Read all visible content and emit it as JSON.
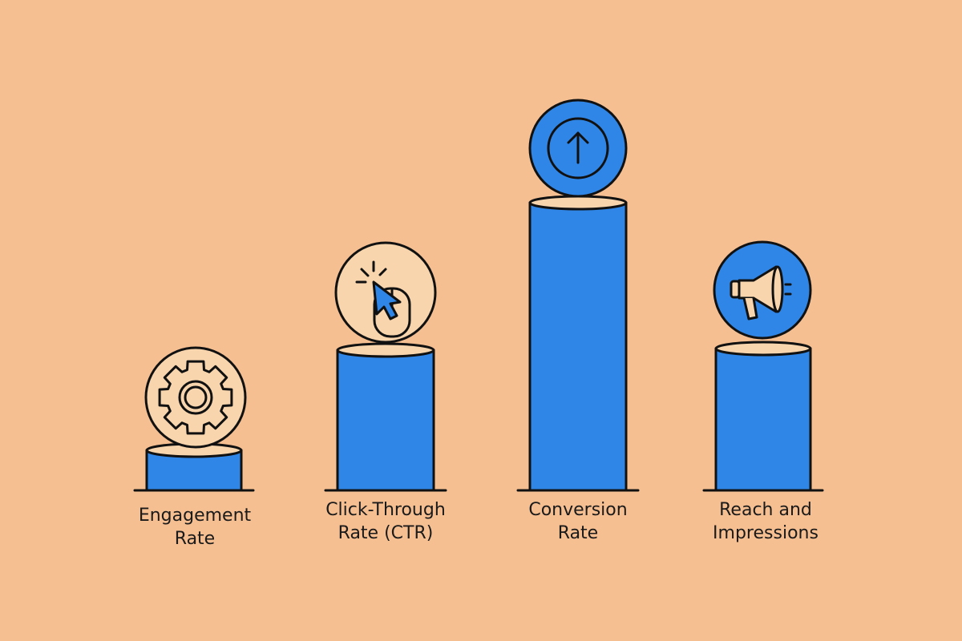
{
  "items": [
    {
      "label": [
        "Engagement",
        "Rate"
      ]
    },
    {
      "label": [
        "Click-Through",
        "Rate (CTR)"
      ]
    },
    {
      "label": [
        "Conversion",
        "Rate"
      ]
    },
    {
      "label": [
        "Reach and",
        "Impressions"
      ]
    }
  ]
}
